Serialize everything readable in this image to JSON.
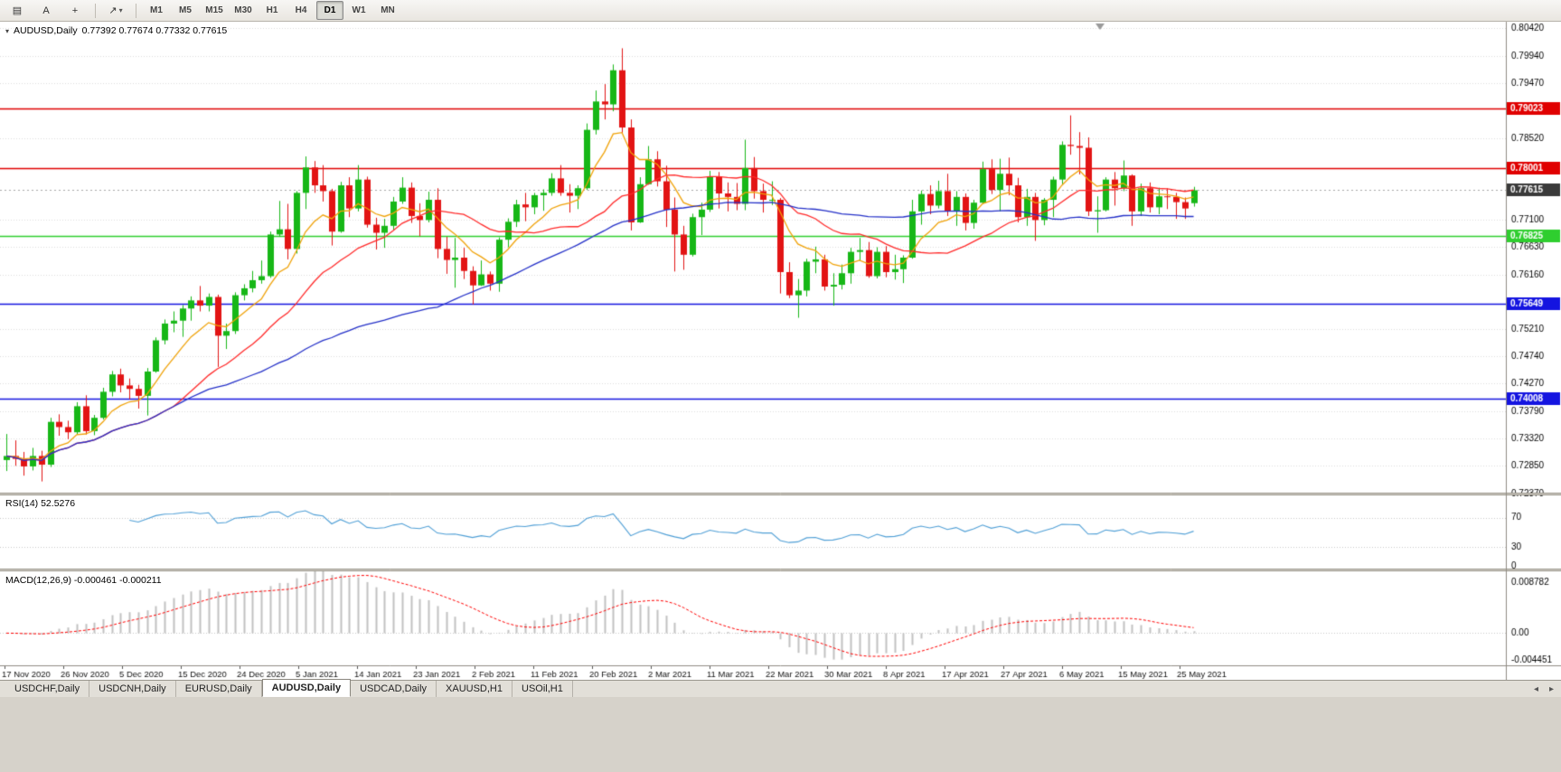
{
  "toolbar": {
    "icons": [
      {
        "name": "charts-grid-icon",
        "glyph": "▤"
      },
      {
        "name": "cursor-tool-icon",
        "glyph": "A"
      },
      {
        "name": "crosshair-tool-icon",
        "glyph": "+"
      },
      {
        "name": "line-studies-icon",
        "glyph": "↗"
      },
      {
        "name": "dropdown-caret-icon",
        "glyph": "▾"
      }
    ],
    "timeframes": [
      "M1",
      "M5",
      "M15",
      "M30",
      "H1",
      "H4",
      "D1",
      "W1",
      "MN"
    ],
    "active_timeframe": "D1"
  },
  "chart": {
    "symbol": "AUDUSD,Daily",
    "ohlc_text": "0.77392 0.77674 0.77332 0.77615"
  },
  "chart_data": {
    "type": "candlestick",
    "symbol": "AUDUSD",
    "timeframe": "Daily",
    "ohlc_display": {
      "open": 0.77392,
      "high": 0.77674,
      "low": 0.77332,
      "close": 0.77615
    },
    "up_color": "#17b717",
    "down_color": "#e21414",
    "price_axis": {
      "min": 0.7237,
      "max": 0.8053,
      "ticks": [
        "0.80420",
        "0.79940",
        "0.79470",
        "0.78520",
        "0.77100",
        "0.76630",
        "0.76160",
        "0.75210",
        "0.74740",
        "0.74270",
        "0.73790",
        "0.73320",
        "0.72850",
        "0.72370"
      ]
    },
    "hlines": [
      {
        "price": 0.79023,
        "label": "0.79023",
        "color": "#e00000"
      },
      {
        "price": 0.78001,
        "label": "0.78001",
        "color": "#e00000"
      },
      {
        "price": 0.76825,
        "label": "0.76825",
        "color": "#2fce2f"
      },
      {
        "price": 0.75649,
        "label": "0.75649",
        "color": "#1414e0"
      },
      {
        "price": 0.74008,
        "label": "0.74008",
        "color": "#1414e0"
      }
    ],
    "current_price": {
      "value": 0.77615,
      "label": "0.77615",
      "label_bg": "#3a3a3a"
    },
    "ma_lines": [
      {
        "name": "ma-fast",
        "period": 8,
        "method": "ema",
        "color": "#f0a30a"
      },
      {
        "name": "ma-mid",
        "period": 20,
        "method": "sma",
        "color": "#ff2a2a"
      },
      {
        "name": "ma-slow",
        "period": 50,
        "method": "sma",
        "color": "#2430c8"
      }
    ],
    "time_axis_labels": [
      "17 Nov 2020",
      "26 Nov 2020",
      "5 Dec 2020",
      "15 Dec 2020",
      "24 Dec 2020",
      "5 Jan 2021",
      "14 Jan 2021",
      "23 Jan 2021",
      "2 Feb 2021",
      "11 Feb 2021",
      "20 Feb 2021",
      "2 Mar 2021",
      "11 Mar 2021",
      "22 Mar 2021",
      "30 Mar 2021",
      "8 Apr 2021",
      "17 Apr 2021",
      "27 Apr 2021",
      "6 May 2021",
      "15 May 2021",
      "25 May 2021"
    ],
    "candles": [
      [
        0.7295,
        0.734,
        0.7276,
        0.7302
      ],
      [
        0.7302,
        0.7329,
        0.7285,
        0.7297
      ],
      [
        0.7297,
        0.7309,
        0.7268,
        0.7284
      ],
      [
        0.7284,
        0.7316,
        0.7277,
        0.7302
      ],
      [
        0.7302,
        0.7311,
        0.7258,
        0.7287
      ],
      [
        0.7287,
        0.7368,
        0.7283,
        0.7361
      ],
      [
        0.7361,
        0.7374,
        0.7337,
        0.7352
      ],
      [
        0.7352,
        0.7363,
        0.7331,
        0.7343
      ],
      [
        0.7343,
        0.7395,
        0.7339,
        0.7388
      ],
      [
        0.7388,
        0.7407,
        0.7339,
        0.7345
      ],
      [
        0.7345,
        0.7373,
        0.7338,
        0.7368
      ],
      [
        0.7368,
        0.742,
        0.7365,
        0.7413
      ],
      [
        0.7413,
        0.7449,
        0.7405,
        0.7443
      ],
      [
        0.7443,
        0.7453,
        0.7412,
        0.7424
      ],
      [
        0.7424,
        0.7436,
        0.74,
        0.7418
      ],
      [
        0.7418,
        0.7425,
        0.7384,
        0.7406
      ],
      [
        0.7406,
        0.7454,
        0.7372,
        0.7448
      ],
      [
        0.7448,
        0.7507,
        0.7446,
        0.7502
      ],
      [
        0.7502,
        0.7538,
        0.7495,
        0.7531
      ],
      [
        0.7531,
        0.7552,
        0.7516,
        0.7536
      ],
      [
        0.7536,
        0.7563,
        0.7508,
        0.7557
      ],
      [
        0.7557,
        0.7578,
        0.7536,
        0.7571
      ],
      [
        0.7571,
        0.7596,
        0.7552,
        0.7562
      ],
      [
        0.7562,
        0.7583,
        0.7552,
        0.7577
      ],
      [
        0.7577,
        0.7581,
        0.7456,
        0.751
      ],
      [
        0.751,
        0.7531,
        0.7487,
        0.7518
      ],
      [
        0.7518,
        0.7585,
        0.7513,
        0.758
      ],
      [
        0.758,
        0.7599,
        0.7571,
        0.7592
      ],
      [
        0.7592,
        0.7622,
        0.7585,
        0.7606
      ],
      [
        0.7606,
        0.764,
        0.76,
        0.7613
      ],
      [
        0.7613,
        0.769,
        0.761,
        0.7685
      ],
      [
        0.7685,
        0.7743,
        0.7681,
        0.7694
      ],
      [
        0.7694,
        0.7738,
        0.7642,
        0.766
      ],
      [
        0.766,
        0.776,
        0.7652,
        0.7757
      ],
      [
        0.7757,
        0.782,
        0.7729,
        0.7801
      ],
      [
        0.7801,
        0.7812,
        0.7757,
        0.777
      ],
      [
        0.777,
        0.7805,
        0.7742,
        0.776
      ],
      [
        0.776,
        0.7764,
        0.7666,
        0.769
      ],
      [
        0.769,
        0.7776,
        0.7688,
        0.777
      ],
      [
        0.777,
        0.7784,
        0.7715,
        0.773
      ],
      [
        0.773,
        0.7805,
        0.7725,
        0.778
      ],
      [
        0.778,
        0.7785,
        0.7697,
        0.7702
      ],
      [
        0.7702,
        0.7714,
        0.7659,
        0.7688
      ],
      [
        0.7688,
        0.7712,
        0.7662,
        0.77
      ],
      [
        0.77,
        0.775,
        0.7693,
        0.7742
      ],
      [
        0.7742,
        0.7784,
        0.7738,
        0.7766
      ],
      [
        0.7766,
        0.7775,
        0.7705,
        0.7717
      ],
      [
        0.7717,
        0.7739,
        0.7682,
        0.771
      ],
      [
        0.771,
        0.7759,
        0.7706,
        0.7745
      ],
      [
        0.7745,
        0.7765,
        0.7644,
        0.766
      ],
      [
        0.766,
        0.7681,
        0.7617,
        0.7641
      ],
      [
        0.7641,
        0.7679,
        0.7593,
        0.7645
      ],
      [
        0.7645,
        0.7662,
        0.7608,
        0.7622
      ],
      [
        0.7622,
        0.763,
        0.7564,
        0.7597
      ],
      [
        0.7597,
        0.764,
        0.7596,
        0.7616
      ],
      [
        0.7616,
        0.7621,
        0.7588,
        0.76
      ],
      [
        0.76,
        0.768,
        0.7586,
        0.7676
      ],
      [
        0.7676,
        0.7713,
        0.7663,
        0.7707
      ],
      [
        0.7707,
        0.7745,
        0.7698,
        0.7737
      ],
      [
        0.7737,
        0.7757,
        0.7708,
        0.7732
      ],
      [
        0.7732,
        0.7757,
        0.772,
        0.7753
      ],
      [
        0.7753,
        0.7763,
        0.7726,
        0.7757
      ],
      [
        0.7757,
        0.7791,
        0.7752,
        0.7782
      ],
      [
        0.7782,
        0.7805,
        0.7752,
        0.7757
      ],
      [
        0.7757,
        0.7772,
        0.7723,
        0.7752
      ],
      [
        0.7752,
        0.777,
        0.7729,
        0.7765
      ],
      [
        0.7765,
        0.7877,
        0.7762,
        0.7866
      ],
      [
        0.7866,
        0.7934,
        0.7858,
        0.7915
      ],
      [
        0.7915,
        0.7945,
        0.7884,
        0.791
      ],
      [
        0.791,
        0.7979,
        0.7898,
        0.7969
      ],
      [
        0.7969,
        0.8007,
        0.786,
        0.787
      ],
      [
        0.787,
        0.7884,
        0.7692,
        0.7706
      ],
      [
        0.7706,
        0.7784,
        0.7705,
        0.7772
      ],
      [
        0.7772,
        0.7838,
        0.7771,
        0.7815
      ],
      [
        0.7815,
        0.7829,
        0.7768,
        0.7777
      ],
      [
        0.7777,
        0.7804,
        0.7698,
        0.7728
      ],
      [
        0.7728,
        0.7749,
        0.7621,
        0.7685
      ],
      [
        0.7685,
        0.77,
        0.7624,
        0.765
      ],
      [
        0.765,
        0.7721,
        0.7647,
        0.7715
      ],
      [
        0.7715,
        0.774,
        0.7684,
        0.7728
      ],
      [
        0.7728,
        0.7795,
        0.7724,
        0.7785
      ],
      [
        0.7785,
        0.7793,
        0.773,
        0.7756
      ],
      [
        0.7756,
        0.7775,
        0.7725,
        0.775
      ],
      [
        0.775,
        0.7774,
        0.7727,
        0.7738
      ],
      [
        0.7738,
        0.7849,
        0.7727,
        0.78
      ],
      [
        0.78,
        0.7819,
        0.7747,
        0.776
      ],
      [
        0.776,
        0.7773,
        0.7723,
        0.7745
      ],
      [
        0.7745,
        0.7777,
        0.7736,
        0.7745
      ],
      [
        0.7745,
        0.7748,
        0.7583,
        0.762
      ],
      [
        0.762,
        0.7637,
        0.7575,
        0.758
      ],
      [
        0.758,
        0.7608,
        0.7541,
        0.7588
      ],
      [
        0.7588,
        0.7643,
        0.7578,
        0.7638
      ],
      [
        0.7638,
        0.7664,
        0.7618,
        0.7642
      ],
      [
        0.7642,
        0.765,
        0.7588,
        0.7595
      ],
      [
        0.7595,
        0.7618,
        0.7562,
        0.7598
      ],
      [
        0.7598,
        0.7633,
        0.759,
        0.7618
      ],
      [
        0.7618,
        0.7662,
        0.76,
        0.7655
      ],
      [
        0.7655,
        0.7679,
        0.764,
        0.7658
      ],
      [
        0.7658,
        0.7672,
        0.761,
        0.7613
      ],
      [
        0.7613,
        0.7663,
        0.7609,
        0.7655
      ],
      [
        0.7655,
        0.7665,
        0.7611,
        0.762
      ],
      [
        0.762,
        0.765,
        0.7607,
        0.7625
      ],
      [
        0.7625,
        0.7649,
        0.7601,
        0.7645
      ],
      [
        0.7645,
        0.7745,
        0.7643,
        0.7725
      ],
      [
        0.7725,
        0.7761,
        0.7702,
        0.7755
      ],
      [
        0.7755,
        0.777,
        0.772,
        0.7735
      ],
      [
        0.7735,
        0.7778,
        0.773,
        0.776
      ],
      [
        0.776,
        0.779,
        0.7717,
        0.7725
      ],
      [
        0.7725,
        0.776,
        0.77,
        0.775
      ],
      [
        0.775,
        0.7756,
        0.7692,
        0.7705
      ],
      [
        0.7705,
        0.7745,
        0.7695,
        0.774
      ],
      [
        0.774,
        0.7811,
        0.7738,
        0.7798
      ],
      [
        0.7798,
        0.7815,
        0.7755,
        0.7762
      ],
      [
        0.7762,
        0.7816,
        0.7725,
        0.779
      ],
      [
        0.779,
        0.7818,
        0.7753,
        0.777
      ],
      [
        0.777,
        0.7783,
        0.7706,
        0.7715
      ],
      [
        0.7715,
        0.7764,
        0.77,
        0.775
      ],
      [
        0.775,
        0.7757,
        0.7674,
        0.771
      ],
      [
        0.771,
        0.7748,
        0.7701,
        0.7745
      ],
      [
        0.7745,
        0.7785,
        0.7715,
        0.778
      ],
      [
        0.778,
        0.7846,
        0.7772,
        0.784
      ],
      [
        0.784,
        0.7891,
        0.7823,
        0.7838
      ],
      [
        0.7838,
        0.7862,
        0.7789,
        0.7835
      ],
      [
        0.7835,
        0.7853,
        0.7717,
        0.7725
      ],
      [
        0.7725,
        0.7751,
        0.7688,
        0.7727
      ],
      [
        0.7727,
        0.7784,
        0.7725,
        0.778
      ],
      [
        0.778,
        0.7793,
        0.7735,
        0.7765
      ],
      [
        0.7765,
        0.7813,
        0.776,
        0.7787
      ],
      [
        0.7787,
        0.7789,
        0.77,
        0.7725
      ],
      [
        0.7725,
        0.7773,
        0.7717,
        0.7765
      ],
      [
        0.7765,
        0.7775,
        0.7723,
        0.7732
      ],
      [
        0.7732,
        0.7766,
        0.772,
        0.7751
      ],
      [
        0.7751,
        0.7765,
        0.7729,
        0.775
      ],
      [
        0.775,
        0.7757,
        0.7712,
        0.7741
      ],
      [
        0.7741,
        0.7749,
        0.7712,
        0.773
      ],
      [
        0.77392,
        0.77674,
        0.77332,
        0.77615
      ]
    ],
    "rsi": {
      "label": "RSI(14) 52.5276",
      "period": 14,
      "value": 52.5276,
      "levels": [
        70,
        30
      ],
      "axis_labels": [
        "70",
        "30",
        "0"
      ],
      "color": "#4f9fd6"
    },
    "macd": {
      "label": "MACD(12,26,9) -0.000461 -0.000211",
      "fast": 12,
      "slow": 26,
      "signal": 9,
      "value": -0.000461,
      "signal_value": -0.000211,
      "axis_labels": [
        "0.008782",
        "0.00",
        "-0.004451"
      ],
      "top": 0.008782,
      "bottom": -0.004451,
      "hist_color": "#c2c2c2",
      "signal_color": "#ff0000"
    }
  },
  "tabs": {
    "items": [
      "USDCHF,Daily",
      "USDCNH,Daily",
      "EURUSD,Daily",
      "AUDUSD,Daily",
      "USDCAD,Daily",
      "XAUUSD,H1",
      "USOil,H1"
    ],
    "active": "AUDUSD,Daily",
    "scroll_icons": [
      {
        "name": "tab-scroll-left-icon",
        "glyph": "◂"
      },
      {
        "name": "tab-scroll-right-icon",
        "glyph": "▸"
      }
    ]
  }
}
